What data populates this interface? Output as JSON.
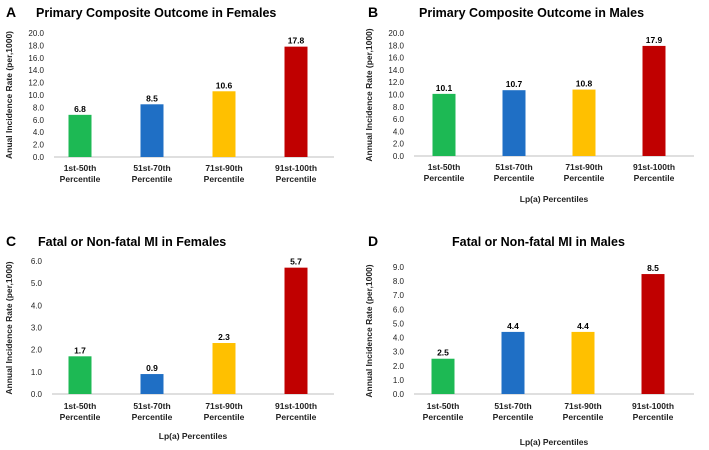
{
  "chart_data": [
    {
      "panel": "A",
      "type": "bar",
      "title": "Primary Composite Outcome in Females",
      "categories": [
        [
          "1st-50th",
          "Percentile"
        ],
        [
          "51st-70th",
          "Percentile"
        ],
        [
          "71st-90th",
          "Percentile"
        ],
        [
          "91st-100th",
          "Percentile"
        ]
      ],
      "values": [
        6.8,
        8.5,
        10.6,
        17.8
      ],
      "data_labels": [
        "6.8",
        "8.5",
        "10.6",
        "17.8"
      ],
      "colors": [
        "#1db954",
        "#1f6fc5",
        "#ffc000",
        "#c00000"
      ],
      "ylabel": "Anual Incidence  Rate (per,1000)",
      "xlabel": "",
      "ylim": [
        0,
        20
      ],
      "yticks": [
        "0.0",
        "2.0",
        "4.0",
        "6.0",
        "8.0",
        "10.0",
        "12.0",
        "14.0",
        "16.0",
        "18.0",
        "20.0"
      ],
      "grid": false
    },
    {
      "panel": "B",
      "type": "bar",
      "title": "Primary Composite Outcome in Males",
      "categories": [
        [
          "1st-50th",
          "Percentile"
        ],
        [
          "51st-70th",
          "Percentile"
        ],
        [
          "71st-90th",
          "Percentile"
        ],
        [
          "91st-100th",
          "Percentile"
        ]
      ],
      "values": [
        10.1,
        10.7,
        10.8,
        17.9
      ],
      "data_labels": [
        "10.1",
        "10.7",
        "10.8",
        "17.9"
      ],
      "colors": [
        "#1db954",
        "#1f6fc5",
        "#ffc000",
        "#c00000"
      ],
      "ylabel": "Annual Incidence  Rate (per,1000)",
      "xlabel": "Lp(a) Percentiles",
      "ylim": [
        0,
        20
      ],
      "yticks": [
        "0.0",
        "2.0",
        "4.0",
        "6.0",
        "8.0",
        "10.0",
        "12.0",
        "14.0",
        "16.0",
        "18.0",
        "20.0"
      ],
      "grid": false
    },
    {
      "panel": "C",
      "type": "bar",
      "title": "Fatal or Non-fatal MI in Females",
      "categories": [
        [
          "1st-50th",
          "Percentile"
        ],
        [
          "51st-70th",
          "Percentile"
        ],
        [
          "71st-90th",
          "Percentile"
        ],
        [
          "91st-100th",
          "Percentile"
        ]
      ],
      "values": [
        1.7,
        0.9,
        2.3,
        5.7
      ],
      "data_labels": [
        "1.7",
        "0.9",
        "2.3",
        "5.7"
      ],
      "colors": [
        "#1db954",
        "#1f6fc5",
        "#ffc000",
        "#c00000"
      ],
      "ylabel": "Annual Incidence  Rate (per,1000)",
      "xlabel": "Lp(a) Percentiles",
      "ylim": [
        0,
        6
      ],
      "yticks": [
        "0.0",
        "1.0",
        "2.0",
        "3.0",
        "4.0",
        "5.0",
        "6.0"
      ],
      "grid": false
    },
    {
      "panel": "D",
      "type": "bar",
      "title": "Fatal or Non-fatal MI in Males",
      "categories": [
        [
          "1st-50th",
          "Percentile"
        ],
        [
          "51st-70th",
          "Percentile"
        ],
        [
          "71st-90th",
          "Percentile"
        ],
        [
          "91st-100th",
          "Percentile"
        ]
      ],
      "values": [
        2.5,
        4.4,
        4.4,
        8.5
      ],
      "data_labels": [
        "2.5",
        "4.4",
        "4.4",
        "8.5"
      ],
      "colors": [
        "#1db954",
        "#1f6fc5",
        "#ffc000",
        "#c00000"
      ],
      "ylabel": "Annual Incidence  Rate (per,1000)",
      "xlabel": "Lp(a) Percentiles",
      "ylim": [
        0,
        9
      ],
      "yticks": [
        "0.0",
        "1.0",
        "2.0",
        "3.0",
        "4.0",
        "5.0",
        "6.0",
        "7.0",
        "8.0",
        "9.0"
      ],
      "grid": false
    }
  ]
}
